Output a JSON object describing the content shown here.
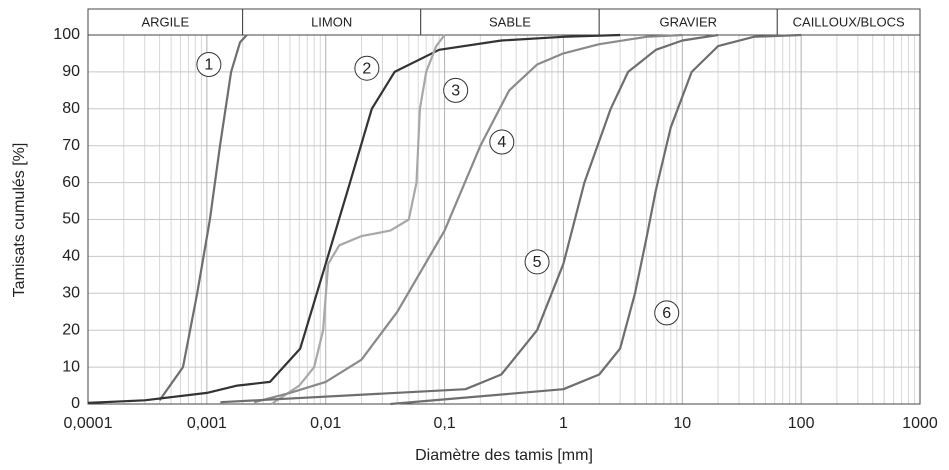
{
  "chart_data": {
    "type": "line",
    "xlabel": "Diamètre des tamis [mm]",
    "ylabel": "Tamisats cumulés [%]",
    "xscale": "log",
    "grid": true,
    "xlim": [
      0.0001,
      1000
    ],
    "ylim": [
      0,
      100
    ],
    "xticks": [
      {
        "value": 0.0001,
        "label": "0,0001"
      },
      {
        "value": 0.001,
        "label": "0,001"
      },
      {
        "value": 0.01,
        "label": "0,01"
      },
      {
        "value": 0.1,
        "label": "0,1"
      },
      1,
      10,
      100,
      1000
    ],
    "yticks": [
      0,
      10,
      20,
      30,
      40,
      50,
      60,
      70,
      80,
      90,
      100
    ],
    "bands": [
      {
        "name": "ARGILE",
        "from": 0.0001,
        "to": 0.002
      },
      {
        "name": "LIMON",
        "from": 0.002,
        "to": 0.063
      },
      {
        "name": "SABLE",
        "from": 0.063,
        "to": 2
      },
      {
        "name": "GRAVIER",
        "from": 2,
        "to": 63
      },
      {
        "name": "CAILLOUX/BLOCS",
        "from": 63,
        "to": 1000
      }
    ],
    "series": [
      {
        "name": "1",
        "color": "#6e6e6e",
        "label_at": [
          0.00104,
          92
        ],
        "x": [
          0.0004,
          0.00063,
          0.00083,
          0.00106,
          0.00129,
          0.0016,
          0.0019,
          0.00217
        ],
        "values": [
          1,
          10,
          30,
          50,
          70,
          90,
          98,
          100
        ]
      },
      {
        "name": "2",
        "color": "#333333",
        "label_at": [
          0.0222,
          91
        ],
        "x": [
          0.0001,
          0.0003,
          0.001,
          0.0018,
          0.0034,
          0.0061,
          0.01,
          0.016,
          0.0244,
          0.038,
          0.09,
          0.3,
          1,
          3
        ],
        "values": [
          0.3,
          1,
          3,
          5,
          6,
          15,
          38,
          60,
          80,
          90,
          96,
          98.5,
          99.5,
          100
        ]
      },
      {
        "name": "3",
        "color": "#a8a8a8",
        "label_at": [
          0.124,
          85
        ],
        "x": [
          0.0035,
          0.006,
          0.008,
          0.0095,
          0.0105,
          0.013,
          0.02,
          0.035,
          0.05,
          0.058,
          0.062,
          0.07,
          0.085,
          0.1
        ],
        "values": [
          0,
          5,
          10,
          20,
          38,
          43,
          45.5,
          47,
          50,
          60,
          80,
          90,
          97,
          100
        ]
      },
      {
        "name": "4",
        "color": "#8a8a8a",
        "label_at": [
          0.303,
          71
        ],
        "x": [
          0.0025,
          0.005,
          0.01,
          0.02,
          0.04,
          0.1,
          0.2,
          0.35,
          0.6,
          1,
          2,
          5,
          10
        ],
        "values": [
          0.5,
          3,
          6,
          12,
          25,
          47,
          70,
          85,
          92,
          95,
          97.5,
          99.5,
          100
        ]
      },
      {
        "name": "5",
        "color": "#6e6e6e",
        "label_at": [
          0.6,
          38.5
        ],
        "x": [
          0.0013,
          0.15,
          0.3,
          0.6,
          1,
          1.5,
          2.5,
          3.5,
          6,
          10,
          20
        ],
        "values": [
          0.5,
          4,
          8,
          20,
          38,
          60,
          80,
          90,
          96,
          98.5,
          100
        ]
      },
      {
        "name": "6",
        "color": "#6e6e6e",
        "label_at": [
          7.4,
          24.7
        ],
        "x": [
          0.035,
          1,
          2,
          3,
          4,
          5,
          6,
          8,
          12,
          20,
          40,
          100
        ],
        "values": [
          0,
          4,
          8,
          15,
          30,
          45,
          58,
          75,
          90,
          97,
          99.5,
          100
        ]
      }
    ]
  }
}
